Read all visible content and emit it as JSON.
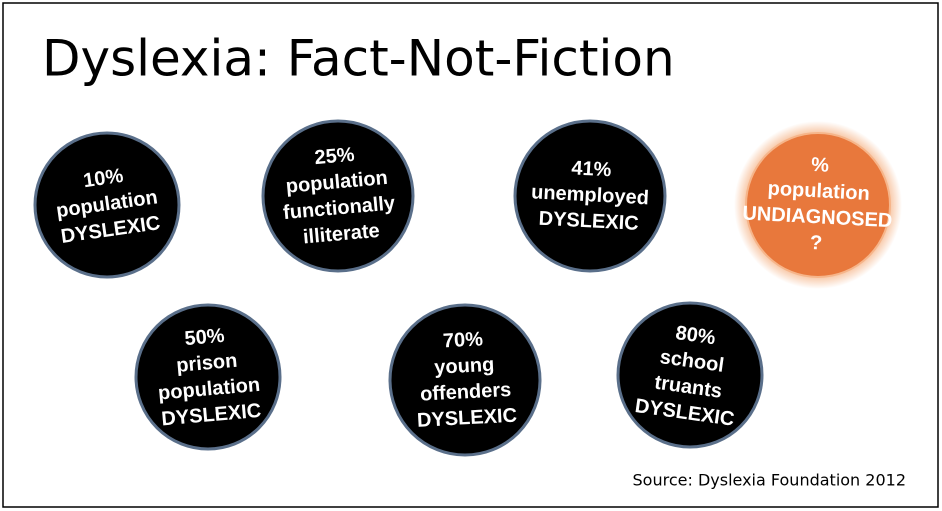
{
  "title": "Dyslexia: Fact-Not-Fiction",
  "circles": [
    {
      "lines": [
        "10%",
        "population",
        "DYSLEXIC"
      ]
    },
    {
      "lines": [
        "25%",
        "population",
        "functionally",
        "illiterate"
      ]
    },
    {
      "lines": [
        "41%",
        "unemployed",
        "DYSLEXIC"
      ]
    },
    {
      "lines": [
        "%",
        "population",
        "UNDIAGNOSED",
        "?"
      ]
    },
    {
      "lines": [
        "50%",
        "prison",
        "population",
        "DYSLEXIC"
      ]
    },
    {
      "lines": [
        "70%",
        "young",
        "offenders",
        "DYSLEXIC"
      ]
    },
    {
      "lines": [
        "80%",
        "school",
        "truants",
        "DYSLEXIC"
      ]
    }
  ],
  "source": "Source: Dyslexia Foundation 2012"
}
